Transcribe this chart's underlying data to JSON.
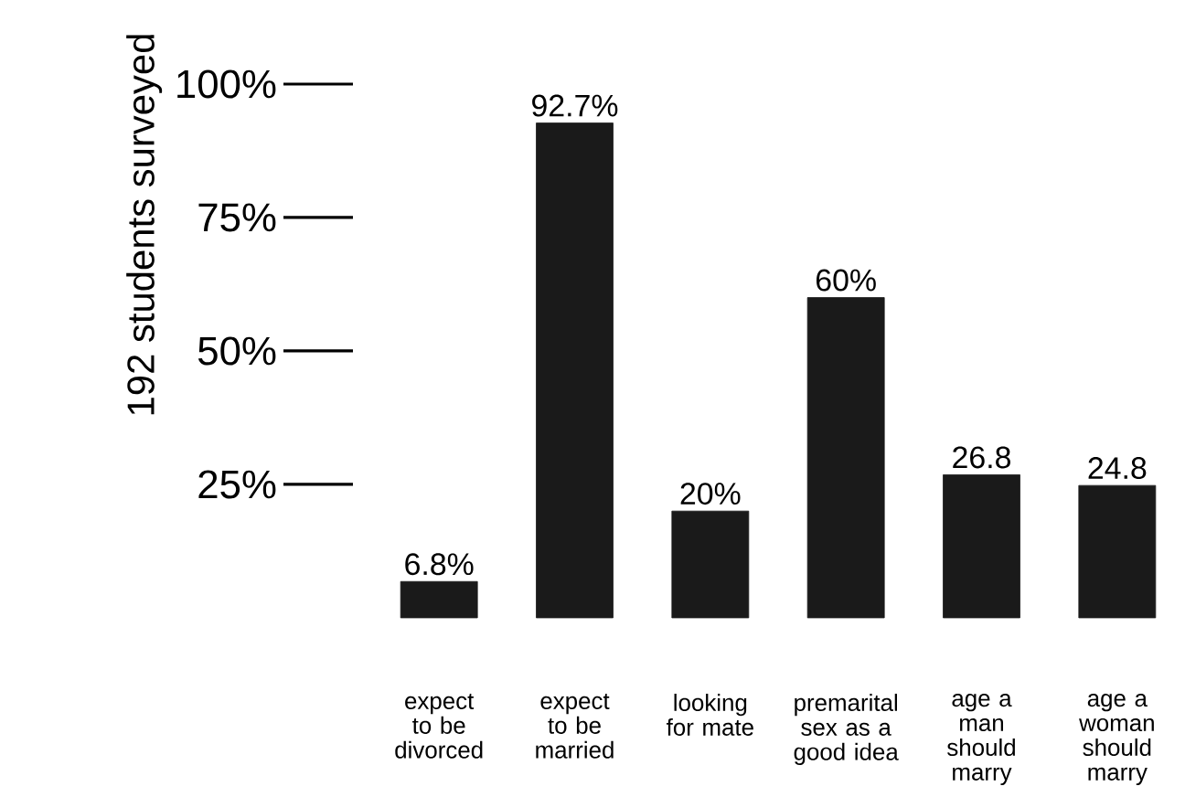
{
  "chart_data": {
    "type": "bar",
    "ylabel": "192 students surveyed",
    "categories": [
      "expect to be divorced",
      "expect to be married",
      "looking for mate",
      "premarital sex as a good idea",
      "age a man should marry",
      "age a woman should marry"
    ],
    "values": [
      6.8,
      92.7,
      20,
      60,
      26.8,
      24.8
    ],
    "value_labels": [
      "6.8%",
      "92.7%",
      "20%",
      "60%",
      "26.8",
      "24.8"
    ],
    "color": "#1a1a1a",
    "ylim": [
      0,
      100
    ],
    "yticks": [
      {
        "value": 25,
        "label": "25%"
      },
      {
        "value": 50,
        "label": "50%"
      },
      {
        "value": 75,
        "label": "75%"
      },
      {
        "value": 100,
        "label": "100%"
      }
    ]
  }
}
